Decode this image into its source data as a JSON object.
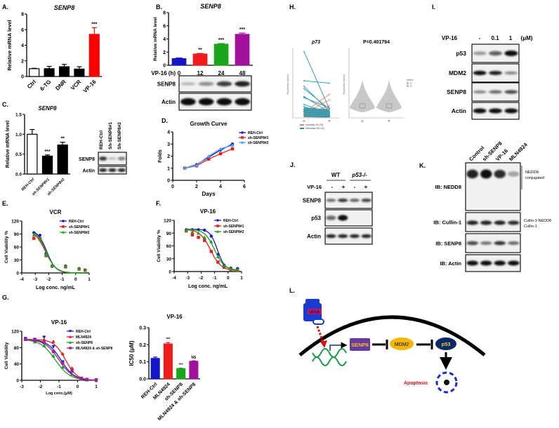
{
  "panels": {
    "A": "A.",
    "B": "B.",
    "C": "C.",
    "D": "D.",
    "E": "E.",
    "F": "F.",
    "G": "G.",
    "H": "H.",
    "I": "I.",
    "J": "J.",
    "K": "K.",
    "L": "L."
  },
  "chart_data": {
    "A": {
      "type": "bar",
      "title": "SENP8",
      "ylabel": "Relative mRNA level",
      "ylim": [
        0,
        8
      ],
      "yticks": [
        0,
        2,
        4,
        6,
        8
      ],
      "categories": [
        "Ctrl",
        "6-TG",
        "DNR",
        "VCR",
        "VP-16"
      ],
      "values": [
        1.0,
        1.0,
        1.25,
        0.95,
        5.4
      ],
      "errors": [
        0.05,
        0.3,
        0.3,
        0.3,
        0.85
      ],
      "colors": [
        "#ffffff",
        "#000000",
        "#000000",
        "#000000",
        "#ff0000"
      ],
      "significance": [
        "",
        "",
        "",
        "",
        "***"
      ]
    },
    "B": {
      "type": "bar",
      "title": "SENP8",
      "ylabel": "Relative mRNA level",
      "xlabel": "VP-16 (h)",
      "ylim": [
        0,
        8
      ],
      "yticks": [
        0,
        2,
        4,
        6,
        8
      ],
      "categories": [
        "0",
        "12",
        "24",
        "48"
      ],
      "values": [
        1.0,
        1.7,
        3.2,
        4.7
      ],
      "errors": [
        0.1,
        0.1,
        0.1,
        0.2
      ],
      "colors": [
        "#1515c8",
        "#ee1c1c",
        "#1aa61a",
        "#a0109a"
      ],
      "significance": [
        "",
        "**",
        "***",
        "***"
      ]
    },
    "C": {
      "type": "bar",
      "title": "SENP8",
      "ylabel": "Relative mRNA level",
      "ylim": [
        0,
        1.5
      ],
      "yticks": [
        "0.0",
        "0.5",
        "1.0",
        "1.5"
      ],
      "categories": [
        "REH-Ctrl",
        "sh-SENP8#1",
        "sh-SENP8#2"
      ],
      "values": [
        1.0,
        0.45,
        0.73
      ],
      "errors": [
        0.12,
        0.03,
        0.07
      ],
      "colors": [
        "#ffffff",
        "#000000",
        "#000000"
      ],
      "significance": [
        "",
        "***",
        "**"
      ]
    },
    "D": {
      "type": "line",
      "title": "Growth Curve",
      "xlabel": "Days",
      "ylabel": "Folds",
      "xlim": [
        0,
        6
      ],
      "xticks": [
        0,
        2,
        4,
        6
      ],
      "ylim": [
        0,
        4
      ],
      "yticks": [
        0,
        1,
        2,
        3,
        4
      ],
      "series": [
        {
          "name": "REH-Ctrl",
          "color": "#1a1ad0",
          "marker": "circle",
          "x": [
            1,
            2,
            3,
            4,
            5
          ],
          "y": [
            1,
            1.3,
            1.9,
            2.5,
            3.0
          ]
        },
        {
          "name": "sh-SENP8#1",
          "color": "#e61c1c",
          "marker": "square",
          "x": [
            1,
            2,
            3,
            4,
            5
          ],
          "y": [
            1,
            1.2,
            1.75,
            2.2,
            2.6
          ]
        },
        {
          "name": "sh-SENP8#2",
          "color": "#4aa0f0",
          "marker": "triangle",
          "x": [
            1,
            2,
            3,
            4,
            5
          ],
          "y": [
            1,
            1.25,
            2.0,
            2.6,
            2.9
          ]
        }
      ]
    },
    "E": {
      "type": "scatter",
      "title": "VCR",
      "xlabel": "Log conc. ng/mL",
      "ylabel": "Cell Viability %",
      "xlim": [
        -4,
        1
      ],
      "xticks": [
        -4,
        -3,
        -2,
        -1,
        0,
        1
      ],
      "ylim": [
        0,
        120
      ],
      "yticks": [
        0,
        30,
        60,
        90,
        120
      ],
      "series": [
        {
          "name": "REH-Ctrl",
          "color": "#1a1ad0",
          "marker": "circle",
          "x": [
            -3.1,
            -2.65,
            -2.2,
            -1.75,
            -0.75,
            0.25,
            0.7
          ],
          "y": [
            93,
            87,
            45,
            15,
            16,
            10,
            7
          ],
          "fit": {
            "top": 100,
            "bottom": 0,
            "logIC50": -2.15,
            "hill": 1.3
          }
        },
        {
          "name": "sh-SENP8#1",
          "color": "#e61c1c",
          "marker": "square",
          "x": [
            -3.1,
            -2.65,
            -2.2,
            -1.75,
            -0.75,
            0.25,
            0.7
          ],
          "y": [
            80,
            79,
            40,
            16,
            14,
            9,
            6
          ],
          "fit": {
            "top": 100,
            "bottom": 0,
            "logIC50": -2.25,
            "hill": 1.1
          }
        },
        {
          "name": "sh-SENP8#2",
          "color": "#1aa61a",
          "marker": "triangle",
          "x": [
            -3.1,
            -2.65,
            -2.2,
            -1.75,
            -0.75,
            0.25,
            0.7
          ],
          "y": [
            88,
            78,
            42,
            17,
            15,
            9,
            6
          ],
          "fit": {
            "top": 100,
            "bottom": 0,
            "logIC50": -2.2,
            "hill": 1.2
          }
        }
      ]
    },
    "F": {
      "type": "scatter",
      "title": "VP-16",
      "xlabel": "Log conc. ng/mL",
      "ylabel": "Cell Viability %",
      "xlim": [
        -4,
        1
      ],
      "xticks": [
        -4,
        -3,
        -2,
        -1,
        0,
        1
      ],
      "ylim": [
        0,
        120
      ],
      "yticks": [
        0,
        30,
        60,
        90,
        120
      ],
      "series": [
        {
          "name": "REH-Ctrl",
          "color": "#1a1ad0",
          "marker": "circle",
          "x": [
            -3.1,
            -2.65,
            -2.2,
            -1.75,
            -1.25,
            -0.75,
            -0.3,
            0.2,
            0.7
          ],
          "y": [
            98,
            98,
            98,
            97,
            83,
            40,
            15,
            8,
            7
          ],
          "fit": {
            "top": 99,
            "bottom": 4,
            "logIC50": -0.8,
            "hill": 1.6
          }
        },
        {
          "name": "sh-SENP8#1",
          "color": "#e61c1c",
          "marker": "square",
          "x": [
            -3.1,
            -2.65,
            -2.2,
            -1.75,
            -1.25,
            -0.75,
            -0.3,
            0.2,
            0.7
          ],
          "y": [
            95,
            86,
            80,
            73,
            47,
            22,
            10,
            5,
            3
          ],
          "fit": {
            "top": 99,
            "bottom": 2,
            "logIC50": -1.3,
            "hill": 1.1
          }
        },
        {
          "name": "sh-SENP8#2",
          "color": "#1aa61a",
          "marker": "triangle",
          "x": [
            -3.1,
            -2.65,
            -2.2,
            -1.75,
            -1.25,
            -0.75,
            -0.3,
            0.2,
            0.7
          ],
          "y": [
            96,
            93,
            90,
            80,
            70,
            35,
            14,
            6,
            5
          ],
          "fit": {
            "top": 99,
            "bottom": 3,
            "logIC50": -1.0,
            "hill": 1.2
          }
        }
      ]
    },
    "G1": {
      "type": "scatter",
      "title": "VP-16",
      "xlabel": "Log conc.(μM)",
      "ylabel": "Cell Viability",
      "xlim": [
        -3,
        1
      ],
      "xticks": [
        -3,
        -2,
        -1,
        0,
        1
      ],
      "ylim": [
        0,
        120
      ],
      "yticks": [
        0,
        40,
        80,
        120
      ],
      "series": [
        {
          "name": "REH-Ctrl",
          "color": "#1a1ad0",
          "marker": "triangle-down",
          "x": [
            -2.8,
            -2.3,
            -1.8,
            -1.3,
            -0.8,
            -0.3,
            0.2,
            0.5,
            1.0
          ],
          "y": [
            102,
            100,
            105,
            82,
            45,
            25,
            5,
            2,
            1
          ],
          "fit": {
            "top": 100,
            "bottom": 0,
            "logIC50": -0.9,
            "hill": 1.2
          }
        },
        {
          "name": "MLN4924",
          "color": "#e61c1c",
          "marker": "triangle",
          "x": [
            -2.8,
            -2.3,
            -1.8,
            -1.3,
            -0.8,
            -0.3,
            0.2,
            0.5,
            1.0
          ],
          "y": [
            100,
            98,
            100,
            95,
            65,
            30,
            5,
            2,
            1
          ],
          "fit": {
            "top": 100,
            "bottom": 0,
            "logIC50": -0.65,
            "hill": 1.4
          }
        },
        {
          "name": "sh-SENP8",
          "color": "#1aa61a",
          "marker": "triangle",
          "x": [
            -2.8,
            -2.3,
            -1.8,
            -1.3,
            -0.8,
            -0.3,
            0.2,
            0.5,
            1.0
          ],
          "y": [
            100,
            94,
            85,
            60,
            32,
            15,
            3,
            1,
            0
          ],
          "fit": {
            "top": 100,
            "bottom": 0,
            "logIC50": -1.2,
            "hill": 1.1
          }
        },
        {
          "name": "MLN4924 & sh-SENP8",
          "color": "#a020a0",
          "marker": "square",
          "x": [
            -2.8,
            -2.3,
            -1.8,
            -1.3,
            -0.8,
            -0.3,
            0.2,
            0.5,
            1.0
          ],
          "y": [
            100,
            97,
            92,
            70,
            42,
            22,
            4,
            2,
            1
          ],
          "fit": {
            "top": 100,
            "bottom": 0,
            "logIC50": -1.0,
            "hill": 1.15
          }
        }
      ]
    },
    "G2": {
      "type": "bar",
      "title": "VP-16",
      "ylabel": "IC50 (μM)",
      "ylim": [
        0,
        0.3
      ],
      "yticks": [
        "0.0",
        "0.1",
        "0.2",
        "0.3"
      ],
      "categories": [
        "REH-Ctrl",
        "MLN4924",
        "sh-SENP8",
        "MLN4924 & sh-SENP8"
      ],
      "values": [
        0.12,
        0.205,
        0.06,
        0.103
      ],
      "errors": [
        0.008,
        0.008,
        0.003,
        0.003
      ],
      "colors": [
        "#1515c8",
        "#ee1c1c",
        "#1aa61a",
        "#a0109a"
      ],
      "significance": [
        "",
        "***",
        "***",
        "NS"
      ]
    },
    "H1": {
      "type": "line",
      "title": "p73",
      "ylabel": "Expression (fpkm)",
      "categories": [
        "D",
        "R"
      ],
      "ylim": [
        0,
        300
      ],
      "legend": [
        "Increase  (N=20)",
        "Decrease (N=41)"
      ],
      "legend_colors": [
        "#f08070",
        "#1a9ab0"
      ],
      "pairs": [
        [
          295,
          40
        ],
        [
          165,
          155
        ],
        [
          140,
          30
        ],
        [
          130,
          40
        ],
        [
          95,
          25
        ],
        [
          90,
          45
        ],
        [
          60,
          20
        ],
        [
          50,
          15
        ],
        [
          40,
          10
        ],
        [
          30,
          8
        ],
        [
          20,
          12
        ],
        [
          15,
          5
        ],
        [
          10,
          55
        ],
        [
          20,
          80
        ],
        [
          25,
          105
        ],
        [
          5,
          45
        ],
        [
          12,
          30
        ],
        [
          8,
          20
        ],
        [
          35,
          25
        ],
        [
          28,
          18
        ]
      ]
    },
    "H2": {
      "type": "violin",
      "title": "P=0.401794",
      "ylabel": "Expression (fpkm)",
      "categories": [
        "D",
        "R"
      ],
      "legend_title": "status",
      "legend": [
        "D",
        "R"
      ],
      "medians": [
        2,
        2.5
      ]
    }
  },
  "blots": {
    "B": {
      "rows": [
        {
          "label": "SENP8",
          "bands": [
            0.1,
            0.35,
            0.75,
            0.9
          ]
        },
        {
          "label": "Actin",
          "bands": [
            1,
            1,
            1,
            1
          ]
        }
      ]
    },
    "C": {
      "lanes": [
        "REH-Ctrl",
        "Sh-SENP8#1",
        "Sh-SENP8#2"
      ],
      "rows": [
        {
          "label": "SENP8",
          "bands": [
            0.8,
            0.1,
            0.45
          ]
        },
        {
          "label": "Actin",
          "bands": [
            0.9,
            0.9,
            0.9
          ]
        }
      ]
    },
    "I": {
      "treatment": "VP-16",
      "doses": [
        "-",
        "0.1",
        "1"
      ],
      "unit": "(μM)",
      "rows": [
        {
          "label": "p53",
          "bands": [
            0.3,
            0.6,
            1
          ]
        },
        {
          "label": "MDM2",
          "bands": [
            1,
            0.9,
            0.4
          ]
        },
        {
          "label": "SENP8",
          "bands": [
            0.4,
            0.55,
            0.7
          ]
        },
        {
          "label": "Actin",
          "bands": [
            1,
            1,
            1
          ]
        }
      ]
    },
    "J": {
      "groups": [
        "WT",
        "p53-/-"
      ],
      "treatment": "VP-16",
      "signs": [
        "-",
        "+",
        "-",
        "+"
      ],
      "rows": [
        {
          "label": "SENP8",
          "bands": [
            0.55,
            0.8,
            0.6,
            0.75
          ]
        },
        {
          "label": "p53",
          "bands": [
            0.55,
            1,
            0,
            0
          ]
        },
        {
          "label": "Actin",
          "bands": [
            0.9,
            0.9,
            0.9,
            0.9
          ]
        }
      ]
    },
    "K": {
      "lanes": [
        "Control",
        "sh-SENP8",
        "VP-16",
        "MLN4924"
      ],
      "rows": [
        {
          "label": "IB: NEDD8",
          "bands": [
            0.9,
            1,
            0.85,
            0.2
          ]
        },
        {
          "label": "IB: Cullin-1",
          "bands": [
            0.9,
            0.9,
            0.9,
            0.85
          ]
        },
        {
          "label": "IB: SENP8",
          "bands": [
            0.7,
            0.5,
            0.8,
            0.55
          ]
        },
        {
          "label": "IB: Actin",
          "bands": [
            1,
            1,
            1,
            1
          ]
        }
      ],
      "annotations": {
        "nedd8_1": "NEDD8-",
        "nedd8_2": "conjugated",
        "cul_nedd8": "Cullin-1-NEDD8",
        "cul": "Cullin-1"
      }
    }
  },
  "diagram": {
    "drug": "VP16",
    "senp8": "SENP8",
    "mdm2": "MDM2",
    "p53": "p53",
    "apoptosis": "Apoptosis"
  }
}
